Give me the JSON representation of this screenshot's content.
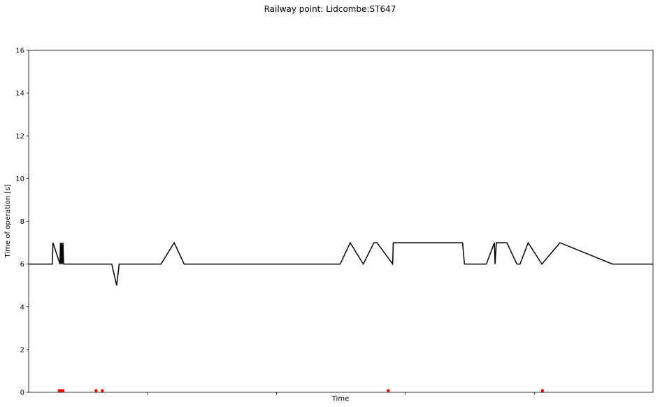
{
  "chart_data": {
    "type": "line",
    "title": "Railway point: Lidcombe:ST647",
    "xlabel": "Time",
    "ylabel": "Time of operation [s]",
    "ylim": [
      0,
      16
    ],
    "yticks": [
      0,
      2,
      4,
      6,
      8,
      10,
      12,
      14,
      16
    ],
    "xlim": [
      0,
      1
    ],
    "xticks": [
      0.19,
      0.397,
      0.603,
      0.81
    ],
    "xtick_labels": [
      "",
      "",
      "",
      ""
    ],
    "grid": false,
    "series": [
      {
        "name": "",
        "type": "line",
        "color": "#000000",
        "x": [
          0,
          0.038,
          0.039,
          0.05,
          0.051,
          0.052,
          0.053,
          0.054,
          0.055,
          0.056,
          0.133,
          0.141,
          0.145,
          0.212,
          0.233,
          0.249,
          0.499,
          0.515,
          0.536,
          0.553,
          0.558,
          0.583,
          0.584,
          0.695,
          0.698,
          0.733,
          0.746,
          0.747,
          0.749,
          0.766,
          0.782,
          0.787,
          0.8,
          0.8,
          0.822,
          0.851,
          0.851,
          0.935,
          1.0
        ],
        "y": [
          6,
          6,
          7,
          6,
          7,
          6,
          7,
          6,
          7,
          6,
          6,
          5,
          6,
          6,
          7,
          6,
          6,
          7,
          6,
          7,
          7,
          6,
          7,
          7,
          6,
          6,
          7,
          6,
          7,
          7,
          6,
          6,
          7,
          7,
          6,
          7,
          7,
          6,
          6
        ]
      },
      {
        "name": "",
        "type": "scatter",
        "color": "#ff0000",
        "x": [
          0.049,
          0.052,
          0.055,
          0.108,
          0.118,
          0.576,
          0.823
        ],
        "y": [
          0.08,
          0.08,
          0.08,
          0.08,
          0.08,
          0.08,
          0.08
        ]
      }
    ]
  }
}
